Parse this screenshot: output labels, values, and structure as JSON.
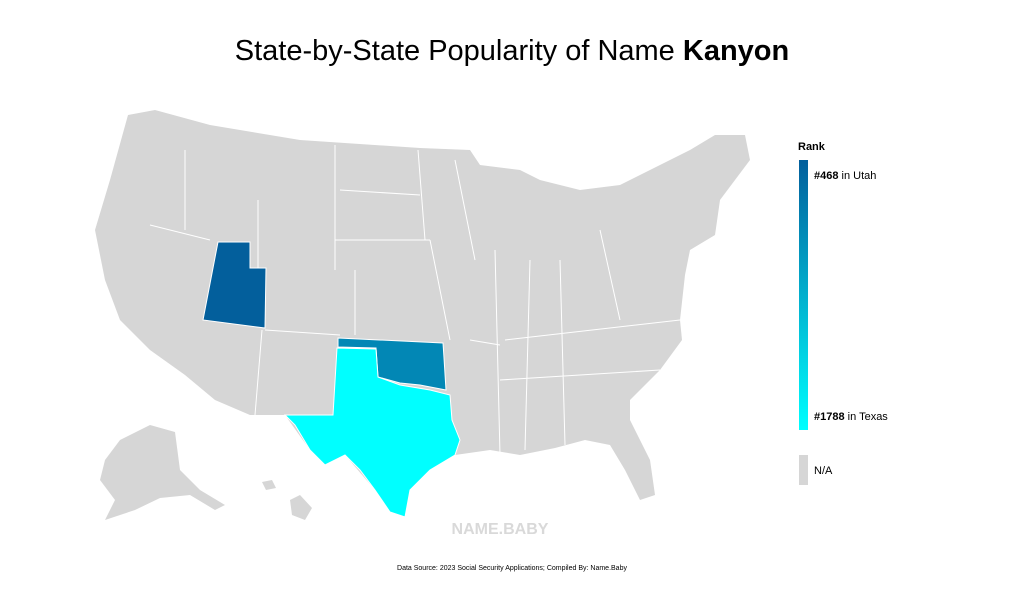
{
  "title": {
    "text": "State-by-State Popularity of Name",
    "name": "Kanyon"
  },
  "legend": {
    "title": "Rank",
    "scale_colors": [
      "#035f9c",
      "#00ffff"
    ],
    "na": "N/A",
    "na_color": "#d6d6d6"
  },
  "states": [
    {
      "label": "#468",
      "rank": 468,
      "text": "in Utah"
    },
    {
      "label": "#1788",
      "rank": 1788,
      "text": "in Texas"
    },
    {
      "rank": 800
    }
  ],
  "watermark": "NAME.BABY",
  "footer": "Data Source: 2023 Social Security Applications; Compiled By: Name.Baby"
}
